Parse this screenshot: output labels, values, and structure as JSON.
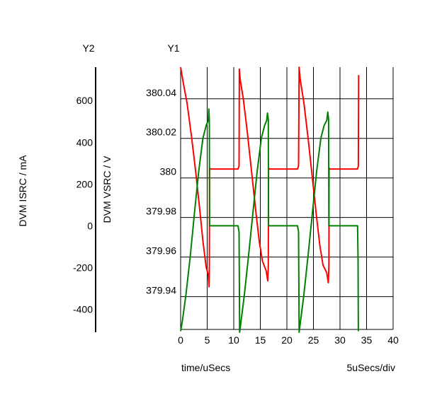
{
  "chart_data": {
    "type": "line",
    "y2_header": "Y2",
    "y1_header": "Y1",
    "y2_label": "DVM ISRC / mA",
    "y1_label": "DVM VSRC / V",
    "xlabel": "time/uSecs",
    "x_div_label": "5uSecs/div",
    "xlim": [
      0,
      40
    ],
    "y1lim": [
      379.922,
      380.056
    ],
    "y2lim": [
      -510,
      760
    ],
    "x_ticks": [
      {
        "value": 0,
        "label": "0"
      },
      {
        "value": 5,
        "label": "5"
      },
      {
        "value": 10,
        "label": "10"
      },
      {
        "value": 15,
        "label": "15"
      },
      {
        "value": 20,
        "label": "20"
      },
      {
        "value": 25,
        "label": "25"
      },
      {
        "value": 30,
        "label": "30"
      },
      {
        "value": 35,
        "label": "35"
      },
      {
        "value": 40,
        "label": "40"
      }
    ],
    "y1_ticks": [
      {
        "value": 379.94,
        "label": "379.94"
      },
      {
        "value": 379.96,
        "label": "379.96"
      },
      {
        "value": 379.98,
        "label": "379.98"
      },
      {
        "value": 380.0,
        "label": "380"
      },
      {
        "value": 380.02,
        "label": "380.02"
      },
      {
        "value": 380.04,
        "label": "380.04"
      }
    ],
    "y2_ticks": [
      {
        "value": -400,
        "label": "-400"
      },
      {
        "value": -200,
        "label": "-200"
      },
      {
        "value": 0,
        "label": "0"
      },
      {
        "value": 200,
        "label": "200"
      },
      {
        "value": 400,
        "label": "400"
      },
      {
        "value": 600,
        "label": "600"
      }
    ],
    "series": [
      {
        "axis": "y1",
        "color": "#ff0000",
        "points": [
          [
            0,
            380.056
          ],
          [
            0.5,
            380.048
          ],
          [
            1.2,
            380.038
          ],
          [
            2.0,
            380.022
          ],
          [
            2.8,
            380.004
          ],
          [
            3.6,
            379.984
          ],
          [
            4.2,
            379.968
          ],
          [
            4.8,
            379.955
          ],
          [
            5.2,
            379.951
          ],
          [
            5.35,
            379.945
          ],
          [
            5.4,
            379.952
          ],
          [
            5.45,
            380.005
          ],
          [
            5.6,
            380.0045
          ],
          [
            10.8,
            380.0045
          ],
          [
            11.0,
            380.006
          ],
          [
            11.05,
            380.055
          ],
          [
            11.2,
            380.05
          ],
          [
            11.8,
            380.04
          ],
          [
            12.6,
            380.022
          ],
          [
            13.4,
            380.002
          ],
          [
            14.2,
            379.982
          ],
          [
            14.8,
            379.968
          ],
          [
            15.4,
            379.958
          ],
          [
            16.1,
            379.953
          ],
          [
            16.4,
            379.948
          ],
          [
            16.5,
            379.955
          ],
          [
            16.55,
            380.005
          ],
          [
            16.7,
            380.0045
          ],
          [
            22.0,
            380.0045
          ],
          [
            22.2,
            380.006
          ],
          [
            22.3,
            380.056
          ],
          [
            22.5,
            380.05
          ],
          [
            23.2,
            380.038
          ],
          [
            24.0,
            380.02
          ],
          [
            24.8,
            380.0
          ],
          [
            25.6,
            379.98
          ],
          [
            26.2,
            379.966
          ],
          [
            26.8,
            379.956
          ],
          [
            27.5,
            379.952
          ],
          [
            27.8,
            379.947
          ],
          [
            27.9,
            379.955
          ],
          [
            27.95,
            380.005
          ],
          [
            28.1,
            380.0045
          ],
          [
            33.3,
            380.0045
          ],
          [
            33.45,
            380.006
          ],
          [
            33.5,
            380.052
          ]
        ]
      },
      {
        "axis": "y2",
        "color": "#008000",
        "points": [
          [
            0,
            -505
          ],
          [
            0.3,
            -460
          ],
          [
            1.0,
            -330
          ],
          [
            1.8,
            -150
          ],
          [
            2.6,
            60
          ],
          [
            3.4,
            260
          ],
          [
            4.2,
            420
          ],
          [
            4.8,
            480
          ],
          [
            5.2,
            505
          ],
          [
            5.3,
            560
          ],
          [
            5.4,
            510
          ],
          [
            5.45,
            0
          ],
          [
            5.6,
            0
          ],
          [
            10.8,
            0
          ],
          [
            11.0,
            -30
          ],
          [
            11.1,
            -510
          ],
          [
            11.3,
            -470
          ],
          [
            12.0,
            -330
          ],
          [
            12.8,
            -140
          ],
          [
            13.6,
            60
          ],
          [
            14.4,
            260
          ],
          [
            15.2,
            420
          ],
          [
            15.8,
            480
          ],
          [
            16.2,
            505
          ],
          [
            16.35,
            540
          ],
          [
            16.5,
            510
          ],
          [
            16.55,
            0
          ],
          [
            16.7,
            0
          ],
          [
            22.0,
            0
          ],
          [
            22.2,
            -30
          ],
          [
            22.3,
            -510
          ],
          [
            22.5,
            -470
          ],
          [
            23.2,
            -330
          ],
          [
            24.0,
            -140
          ],
          [
            24.8,
            60
          ],
          [
            25.6,
            260
          ],
          [
            26.4,
            420
          ],
          [
            27.0,
            480
          ],
          [
            27.5,
            505
          ],
          [
            27.7,
            545
          ],
          [
            27.85,
            510
          ],
          [
            27.9,
            0
          ],
          [
            28.1,
            0
          ],
          [
            33.3,
            0
          ],
          [
            33.4,
            -160
          ],
          [
            33.45,
            -505
          ]
        ]
      }
    ]
  }
}
